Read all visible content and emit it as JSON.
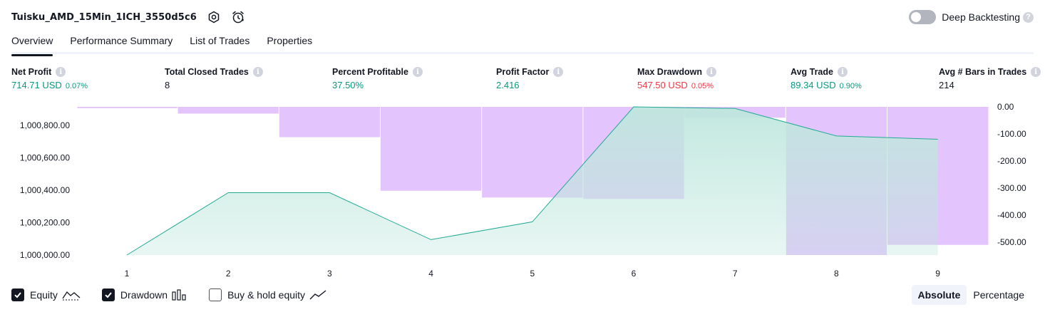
{
  "header": {
    "strategy_name": "Tuisku_AMD_15Min_1ICH_3550d5c6",
    "settings_icon": "settings-icon",
    "alert_icon": "alarm-clock-icon"
  },
  "deep_backtesting": {
    "label": "Deep Backtesting",
    "enabled": false,
    "help": "?"
  },
  "tabs": [
    {
      "label": "Overview",
      "active": true
    },
    {
      "label": "Performance Summary",
      "active": false
    },
    {
      "label": "List of Trades",
      "active": false
    },
    {
      "label": "Properties",
      "active": false
    }
  ],
  "metrics": {
    "net_profit": {
      "label": "Net Profit",
      "value": "714.71 USD",
      "pct": "0.07%"
    },
    "total_closed_trades": {
      "label": "Total Closed Trades",
      "value": "8"
    },
    "percent_profitable": {
      "label": "Percent Profitable",
      "value": "37.50%"
    },
    "profit_factor": {
      "label": "Profit Factor",
      "value": "2.416"
    },
    "max_drawdown": {
      "label": "Max Drawdown",
      "value": "547.50 USD",
      "pct": "0.05%"
    },
    "avg_trade": {
      "label": "Avg Trade",
      "value": "89.34 USD",
      "pct": "0.90%"
    },
    "avg_bars": {
      "label": "Avg # Bars in Trades",
      "value": "214"
    },
    "info_glyph": "i"
  },
  "chart_data": {
    "type": "area",
    "x": [
      1,
      2,
      3,
      4,
      5,
      6,
      7,
      8,
      9
    ],
    "series": [
      {
        "name": "Equity",
        "axis": "left",
        "values": [
          1000000,
          1000385,
          1000385,
          1000095,
          1000205,
          1000915,
          1000905,
          1000735,
          1000715
        ]
      },
      {
        "name": "Drawdown",
        "axis": "right",
        "type": "bar",
        "values": [
          -5,
          -25,
          -112,
          -310,
          -335,
          -340,
          -40,
          -547.5,
          -510
        ]
      }
    ],
    "left_axis": {
      "ticks": [
        1000000,
        1000200,
        1000400,
        1000600,
        1000800
      ],
      "tick_labels": [
        "1,000,000.00",
        "1,000,200.00",
        "1,000,400.00",
        "1,000,600.00",
        "1,000,800.00"
      ],
      "range": [
        1000000,
        1000915
      ]
    },
    "right_axis": {
      "ticks": [
        0,
        -100,
        -200,
        -300,
        -400,
        -500
      ],
      "tick_labels": [
        "0.00",
        "-100.00",
        "-200.00",
        "-300.00",
        "-400.00",
        "-500.00"
      ],
      "range": [
        -547.5,
        0
      ]
    },
    "x_tick_labels": [
      "1",
      "2",
      "3",
      "4",
      "5",
      "6",
      "7",
      "8",
      "9"
    ],
    "colors": {
      "equity_line": "#22ab94",
      "equity_fill": "#bfe7dd",
      "drawdown_bar": "#ce93fb"
    }
  },
  "legend": {
    "items": [
      {
        "label": "Equity",
        "checked": true,
        "icon": "equity-line-icon"
      },
      {
        "label": "Drawdown",
        "checked": true,
        "icon": "drawdown-bars-icon"
      },
      {
        "label": "Buy & hold equity",
        "checked": false,
        "icon": "buy-hold-line-icon"
      }
    ]
  },
  "mode": {
    "absolute": "Absolute",
    "percentage": "Percentage",
    "selected": "Absolute"
  }
}
